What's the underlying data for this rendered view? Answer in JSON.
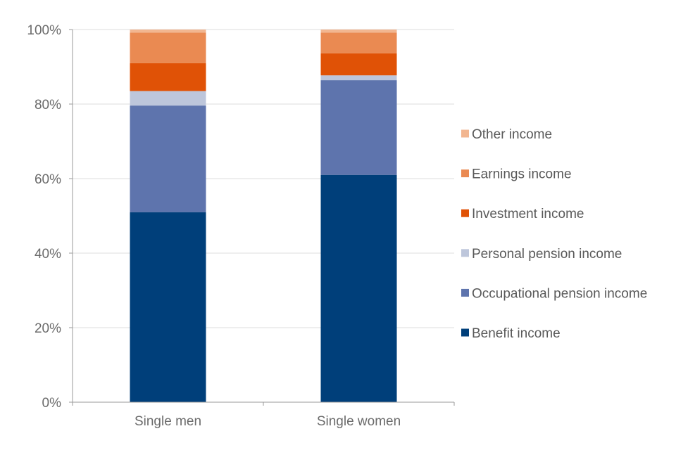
{
  "chart_data": {
    "type": "bar",
    "stacked": true,
    "title": "",
    "xlabel": "",
    "ylabel": "",
    "ylim": [
      0,
      100
    ],
    "y_ticks": [
      "0%",
      "20%",
      "40%",
      "60%",
      "80%",
      "100%"
    ],
    "y_tick_values": [
      0,
      20,
      40,
      60,
      80,
      100
    ],
    "grid": true,
    "legend_position": "right",
    "categories": [
      "Single men",
      "Single women"
    ],
    "series": [
      {
        "name": "Benefit income",
        "color": "#003f7a",
        "values": [
          51.0,
          61.0
        ]
      },
      {
        "name": "Occupational pension income",
        "color": "#5e74ad",
        "values": [
          28.6,
          25.4
        ]
      },
      {
        "name": "Personal pension income",
        "color": "#bdc6db",
        "values": [
          3.9,
          1.3
        ]
      },
      {
        "name": "Investment income",
        "color": "#e05206",
        "values": [
          7.5,
          5.9
        ]
      },
      {
        "name": "Earnings income",
        "color": "#ea8a52",
        "values": [
          8.2,
          5.6
        ]
      },
      {
        "name": "Other income",
        "color": "#f2b690",
        "values": [
          0.8,
          0.8
        ]
      }
    ],
    "legend_order": [
      "Other income",
      "Earnings income",
      "Investment income",
      "Personal pension income",
      "Occupational pension income",
      "Benefit income"
    ]
  }
}
